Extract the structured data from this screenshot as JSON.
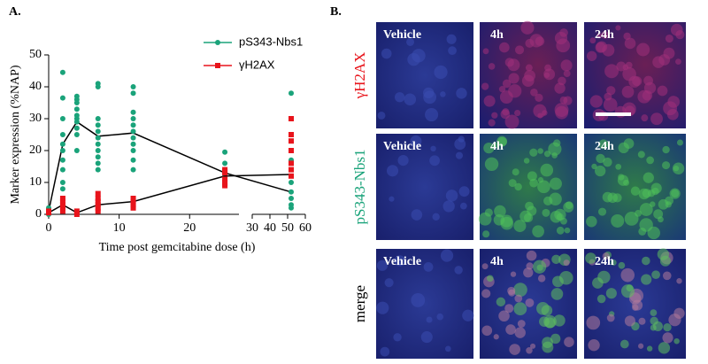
{
  "chart_data": {
    "type": "scatter",
    "panel_label": "A.",
    "ylabel": "Marker expression (%NAP)",
    "xlabel": "Time post gemcitabine dose (h)",
    "ylim": [
      0,
      50
    ],
    "yticks": [
      0,
      10,
      20,
      30,
      40,
      50
    ],
    "x_segments": [
      {
        "xlim": [
          0,
          27
        ],
        "xticks": [
          0,
          10,
          20
        ]
      },
      {
        "xlim": [
          30,
          60
        ],
        "xticks": [
          30,
          40,
          50,
          60
        ]
      }
    ],
    "series": [
      {
        "name": "pS343-Nbs1",
        "color": "#1aa37a",
        "marker": "circle",
        "x": [
          0,
          0,
          0,
          0,
          2,
          2,
          2,
          2,
          2,
          2,
          2,
          2,
          2,
          2,
          2,
          2,
          4,
          4,
          4,
          4,
          4,
          4,
          4,
          4,
          4,
          4,
          7,
          7,
          7,
          7,
          7,
          7,
          7,
          7,
          7,
          7,
          7,
          12,
          12,
          12,
          12,
          12,
          12,
          12,
          12,
          12,
          12,
          12,
          25,
          25,
          25,
          25,
          25,
          25,
          25,
          52,
          52,
          52,
          52,
          52,
          52,
          52,
          52
        ],
        "values": [
          0.5,
          1,
          2,
          0,
          44.5,
          36.5,
          30,
          25,
          22,
          20,
          17,
          14,
          10,
          8,
          5,
          2,
          37,
          36,
          35,
          33,
          31,
          30,
          29,
          27,
          25,
          20,
          41,
          40,
          30,
          28,
          26,
          24,
          22,
          20,
          18,
          16,
          14,
          40,
          38,
          32,
          30,
          28,
          26,
          24,
          22,
          20,
          17,
          14,
          19.5,
          16,
          14,
          13,
          12,
          10,
          9,
          38,
          20,
          17,
          10,
          7,
          5,
          3,
          2
        ],
        "mean_x": [
          0,
          2,
          4,
          7,
          12,
          25,
          52
        ],
        "mean_values": [
          1,
          22,
          29,
          24.5,
          25.5,
          13,
          7
        ]
      },
      {
        "name": "γH2AX",
        "color": "#e8141b",
        "marker": "square",
        "x": [
          0,
          0,
          2,
          2,
          2,
          2,
          2,
          4,
          4,
          7,
          7,
          7,
          7,
          7,
          7,
          12,
          12,
          12,
          12,
          25,
          25,
          25,
          25,
          25,
          52,
          52,
          52,
          52,
          52,
          52,
          52
        ],
        "values": [
          0.5,
          1,
          1,
          2,
          3,
          4,
          5,
          0,
          1,
          1,
          2,
          3,
          4,
          5,
          6.5,
          2,
          3,
          4,
          5,
          9,
          10,
          11,
          13,
          14,
          30,
          25,
          23,
          20,
          16,
          14,
          12
        ],
        "mean_x": [
          0,
          2,
          4,
          7,
          12,
          25,
          52
        ],
        "mean_values": [
          0.5,
          3,
          0.5,
          3,
          4,
          12,
          12.5
        ]
      }
    ]
  },
  "panel_b": {
    "panel_label": "B.",
    "rows": [
      {
        "label": "γH2AX",
        "tiles": [
          "Vehicle",
          "4h",
          "24h"
        ]
      },
      {
        "label": "pS343-Nbs1",
        "tiles": [
          "Vehicle",
          "4h",
          "24h"
        ]
      },
      {
        "label": "merge",
        "tiles": [
          "Vehicle",
          "4h",
          "24h"
        ]
      }
    ]
  }
}
